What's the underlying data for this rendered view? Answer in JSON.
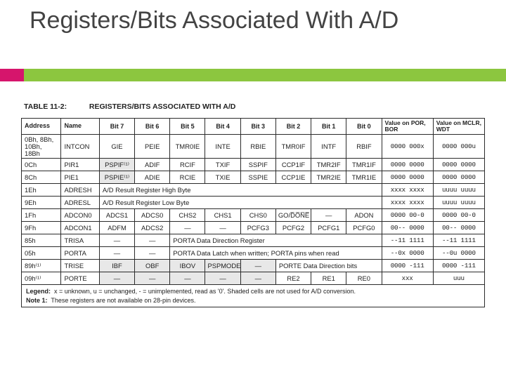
{
  "slide": {
    "title": "Registers/Bits Associated With A/D",
    "accent_pink": "#d6156c",
    "accent_green": "#8cc63f"
  },
  "table": {
    "number": "TABLE 11-2:",
    "caption": "REGISTERS/BITS ASSOCIATED WITH A/D",
    "columns": [
      {
        "key": "addr",
        "label": "Address",
        "class": "addr l"
      },
      {
        "key": "name",
        "label": "Name",
        "class": "name l"
      },
      {
        "key": "b7",
        "label": "Bit 7",
        "class": "bit"
      },
      {
        "key": "b6",
        "label": "Bit 6",
        "class": "bit"
      },
      {
        "key": "b5",
        "label": "Bit 5",
        "class": "bit"
      },
      {
        "key": "b4",
        "label": "Bit 4",
        "class": "bit"
      },
      {
        "key": "b3",
        "label": "Bit 3",
        "class": "bit"
      },
      {
        "key": "b2",
        "label": "Bit 2",
        "class": "bit"
      },
      {
        "key": "b1",
        "label": "Bit 1",
        "class": "bit"
      },
      {
        "key": "b0",
        "label": "Bit 0",
        "class": "bit"
      },
      {
        "key": "vpor",
        "label": "Value on POR, BOR",
        "class": "val"
      },
      {
        "key": "vmclr",
        "label": "Value on MCLR, WDT",
        "class": "val"
      }
    ],
    "rows": [
      {
        "addr": "0Bh, 8Bh, 10Bh, 18Bh",
        "name": "INTCON",
        "b7": "GIE",
        "b6": "PEIE",
        "b5": "TMR0IE",
        "b4": "INTE",
        "b3": "RBIE",
        "b2": "TMR0IF",
        "b1": "INTF",
        "b0": "RBIF",
        "vpor": "0000 000x",
        "vmclr": "0000 000u",
        "shade": []
      },
      {
        "addr": "0Ch",
        "name": "PIR1",
        "b7": "PSPIF⁽¹⁾",
        "b6": "ADIF",
        "b5": "RCIF",
        "b4": "TXIF",
        "b3": "SSPIF",
        "b2": "CCP1IF",
        "b1": "TMR2IF",
        "b0": "TMR1IF",
        "vpor": "0000 0000",
        "vmclr": "0000 0000",
        "shade": [
          "b7"
        ]
      },
      {
        "addr": "8Ch",
        "name": "PIE1",
        "b7": "PSPIE⁽¹⁾",
        "b6": "ADIE",
        "b5": "RCIE",
        "b4": "TXIE",
        "b3": "SSPIE",
        "b2": "CCP1IE",
        "b1": "TMR2IE",
        "b0": "TMR1IE",
        "vpor": "0000 0000",
        "vmclr": "0000 0000",
        "shade": [
          "b7"
        ]
      },
      {
        "addr": "1Eh",
        "name": "ADRESH",
        "span": {
          "text": "A/D Result Register High Byte",
          "from": "b7",
          "cols": 8
        },
        "vpor": "xxxx xxxx",
        "vmclr": "uuuu uuuu",
        "shade": []
      },
      {
        "addr": "9Eh",
        "name": "ADRESL",
        "span": {
          "text": "A/D Result Register Low Byte",
          "from": "b7",
          "cols": 8
        },
        "vpor": "xxxx xxxx",
        "vmclr": "uuuu uuuu",
        "shade": []
      },
      {
        "addr": "1Fh",
        "name": "ADCON0",
        "b7": "ADCS1",
        "b6": "ADCS0",
        "b5": "CHS2",
        "b4": "CHS1",
        "b3": "CHS0",
        "b2": "GO/D̅O̅N̅E̅",
        "b1": "—",
        "b0": "ADON",
        "vpor": "0000 00-0",
        "vmclr": "0000 00-0",
        "shade": []
      },
      {
        "addr": "9Fh",
        "name": "ADCON1",
        "b7": "ADFM",
        "b6": "ADCS2",
        "b5": "—",
        "b4": "—",
        "b3": "PCFG3",
        "b2": "PCFG2",
        "b1": "PCFG1",
        "b0": "PCFG0",
        "vpor": "00-- 0000",
        "vmclr": "00-- 0000",
        "shade": []
      },
      {
        "addr": "85h",
        "name": "TRISA",
        "b7": "—",
        "b6": "—",
        "span": {
          "text": "PORTA Data Direction Register",
          "from": "b5",
          "cols": 6
        },
        "vpor": "--11 1111",
        "vmclr": "--11 1111",
        "shade": []
      },
      {
        "addr": "05h",
        "name": "PORTA",
        "b7": "—",
        "b6": "—",
        "span": {
          "text": "PORTA Data Latch when written; PORTA pins when read",
          "from": "b5",
          "cols": 6
        },
        "vpor": "--0x 0000",
        "vmclr": "--0u 0000",
        "shade": []
      },
      {
        "addr": "89h⁽¹⁾",
        "name": "TRISE",
        "b7": "IBF",
        "b6": "OBF",
        "b5": "IBOV",
        "b4": "PSPMODE",
        "b3": "—",
        "span": {
          "text": "PORTE Data Direction bits",
          "from": "b2",
          "cols": 3
        },
        "vpor": "0000 -111",
        "vmclr": "0000 -111",
        "shade": [
          "b7",
          "b6",
          "b5",
          "b4",
          "b3"
        ]
      },
      {
        "addr": "09h⁽¹⁾",
        "name": "PORTE",
        "b7": "—",
        "b6": "—",
        "b5": "—",
        "b4": "—",
        "b3": "—",
        "b2": "RE2",
        "b1": "RE1",
        "b0": "RE0",
        "vpor": "xxx",
        "vmclr": "uuu",
        "shade": [
          "b7",
          "b6",
          "b5",
          "b4",
          "b3"
        ]
      }
    ],
    "legend_label": "Legend:",
    "legend_text": "x = unknown, u = unchanged, - = unimplemented, read as '0'. Shaded cells are not used for A/D conversion.",
    "note_label": "Note   1:",
    "note_text": "These registers are not available on 28-pin devices."
  }
}
